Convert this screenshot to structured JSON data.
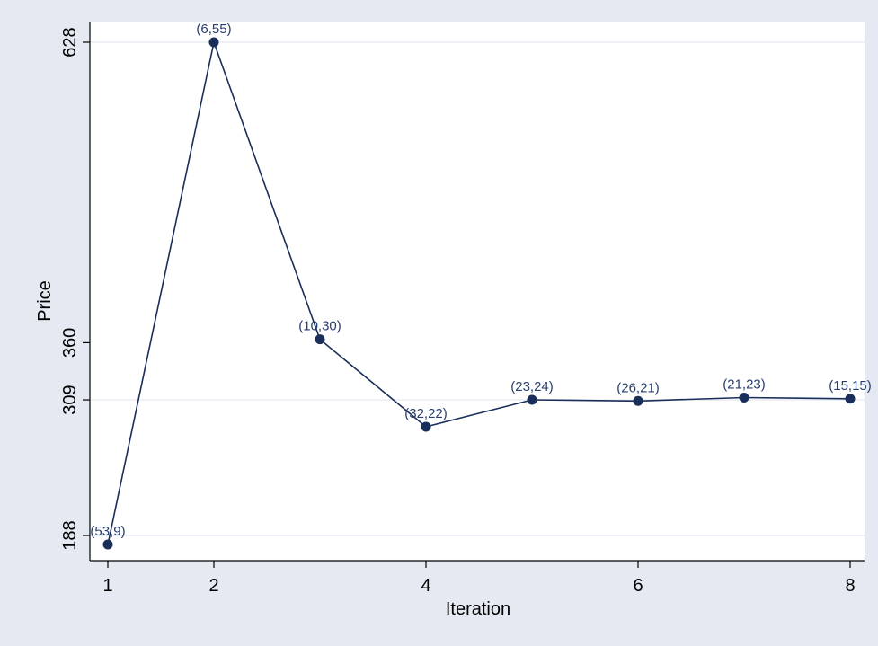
{
  "chart_data": {
    "type": "line",
    "title": "",
    "xlabel": "Iteration",
    "ylabel": "Price",
    "x": [
      1,
      2,
      3,
      4,
      5,
      6,
      7,
      8
    ],
    "y": [
      180,
      628,
      363,
      285,
      309,
      308,
      311,
      310
    ],
    "point_labels": [
      "(53,9)",
      "(6,55)",
      "(10,30)",
      "(32,22)",
      "(23,24)",
      "(26,21)",
      "(21,23)",
      "(15,15)"
    ],
    "xticks": [
      1,
      2,
      4,
      6,
      8
    ],
    "yticks": [
      188,
      309,
      360,
      628
    ],
    "ygrid": [
      188,
      309,
      628
    ],
    "xlim": [
      1,
      8
    ],
    "ylim": [
      180,
      628
    ],
    "grid": true,
    "legend": "none",
    "colors": {
      "background": "#e5e9f1",
      "plot_area": "#ffffff",
      "series": "#1a2e5a",
      "label": "#283e6e",
      "grid": "#e2e6ee"
    }
  }
}
